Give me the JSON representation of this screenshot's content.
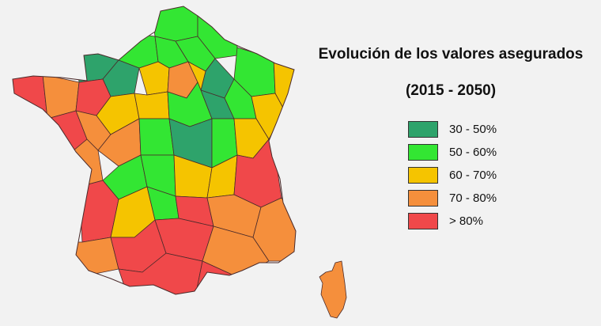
{
  "title": "Evolución de los valores asegurados",
  "subtitle": "(2015 - 2050)",
  "legend": [
    {
      "label": "30 - 50%",
      "color": "#2ea36b"
    },
    {
      "label": "50 - 60%",
      "color": "#33e633"
    },
    {
      "label": "60 - 70%",
      "color": "#f5c400"
    },
    {
      "label": "70 - 80%",
      "color": "#f58f3c"
    },
    {
      "label": "> 80%",
      "color": "#f0484a"
    }
  ]
}
